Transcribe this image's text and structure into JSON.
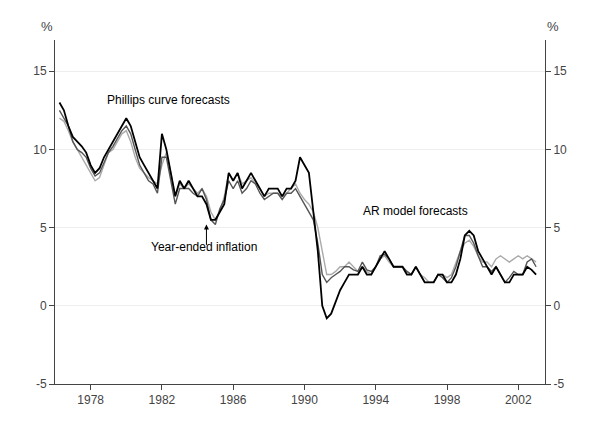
{
  "chart_data": {
    "type": "line",
    "ylabel": "%",
    "y2label": "%",
    "xlim": [
      1976.0,
      2003.5
    ],
    "ylim": [
      -5,
      17
    ],
    "yticks": [
      -5,
      0,
      5,
      10,
      15
    ],
    "y2lim": [
      -5,
      17
    ],
    "y2ticks": [
      -5,
      0,
      5,
      10,
      15
    ],
    "xticks": [
      1978,
      1982,
      1986,
      1990,
      1994,
      1998,
      2002
    ],
    "grid": true,
    "annotations": [
      {
        "text": "Phillips curve forecasts"
      },
      {
        "text": "AR model forecasts"
      },
      {
        "text": "Year-ended inflation"
      }
    ],
    "x": [
      1976.25,
      1976.5,
      1976.75,
      1977.0,
      1977.25,
      1977.5,
      1977.75,
      1978.0,
      1978.25,
      1978.5,
      1978.75,
      1979.0,
      1979.25,
      1979.5,
      1979.75,
      1980.0,
      1980.25,
      1980.5,
      1980.75,
      1981.0,
      1981.25,
      1981.5,
      1981.75,
      1982.0,
      1982.25,
      1982.5,
      1982.75,
      1983.0,
      1983.25,
      1983.5,
      1983.75,
      1984.0,
      1984.25,
      1984.5,
      1984.75,
      1985.0,
      1985.25,
      1985.5,
      1985.75,
      1986.0,
      1986.25,
      1986.5,
      1986.75,
      1987.0,
      1987.25,
      1987.5,
      1987.75,
      1988.0,
      1988.25,
      1988.5,
      1988.75,
      1989.0,
      1989.25,
      1989.5,
      1989.75,
      1990.0,
      1990.25,
      1990.5,
      1990.75,
      1991.0,
      1991.25,
      1991.5,
      1991.75,
      1992.0,
      1992.25,
      1992.5,
      1992.75,
      1993.0,
      1993.25,
      1993.5,
      1993.75,
      1994.0,
      1994.25,
      1994.5,
      1994.75,
      1995.0,
      1995.25,
      1995.5,
      1995.75,
      1996.0,
      1996.25,
      1996.5,
      1996.75,
      1997.0,
      1997.25,
      1997.5,
      1997.75,
      1998.0,
      1998.25,
      1998.5,
      1998.75,
      1999.0,
      1999.25,
      1999.5,
      1999.75,
      2000.0,
      2000.25,
      2000.5,
      2000.75,
      2001.0,
      2001.25,
      2001.5,
      2001.75,
      2002.0,
      2002.25,
      2002.5,
      2002.75,
      2003.0
    ],
    "series": [
      {
        "color": "#aaaaaa",
        "values": [
          12.0,
          11.8,
          11.2,
          10.5,
          10.0,
          9.5,
          9.0,
          8.5,
          8.0,
          8.2,
          9.0,
          9.8,
          10.0,
          10.5,
          11.0,
          11.2,
          10.5,
          9.5,
          8.8,
          8.5,
          8.2,
          8.0,
          7.8,
          9.0,
          9.8,
          8.5,
          7.0,
          7.8,
          7.5,
          7.8,
          7.5,
          7.2,
          7.5,
          7.0,
          6.0,
          5.5,
          6.0,
          7.0,
          8.5,
          8.0,
          8.5,
          7.8,
          8.0,
          8.2,
          7.8,
          7.5,
          7.0,
          7.2,
          7.2,
          7.2,
          7.0,
          7.2,
          7.5,
          7.8,
          7.2,
          6.8,
          6.5,
          6.0,
          5.0,
          3.5,
          2.0,
          2.0,
          2.2,
          2.5,
          2.5,
          2.8,
          2.5,
          2.2,
          2.5,
          2.2,
          2.0,
          2.5,
          3.0,
          3.2,
          2.8,
          2.5,
          2.5,
          2.5,
          2.2,
          2.0,
          2.5,
          2.0,
          1.8,
          1.5,
          1.5,
          2.0,
          2.0,
          1.8,
          2.0,
          2.8,
          3.5,
          4.0,
          4.2,
          3.8,
          3.2,
          2.8,
          2.8,
          2.5,
          3.0,
          3.2,
          3.0,
          2.8,
          3.0,
          3.2,
          3.0,
          3.2,
          3.0,
          2.8
        ]
      },
      {
        "color": "#555555",
        "values": [
          12.5,
          12.0,
          11.5,
          10.5,
          10.0,
          9.8,
          9.5,
          8.8,
          8.3,
          8.5,
          9.2,
          9.8,
          10.2,
          10.7,
          11.2,
          11.5,
          11.0,
          10.0,
          9.0,
          8.5,
          8.0,
          7.8,
          7.2,
          9.5,
          9.5,
          8.0,
          6.5,
          7.5,
          7.5,
          7.5,
          7.2,
          7.0,
          7.5,
          6.8,
          5.5,
          5.2,
          6.2,
          6.8,
          8.0,
          7.5,
          8.0,
          7.2,
          7.5,
          8.0,
          7.8,
          7.2,
          6.8,
          7.0,
          7.2,
          7.2,
          6.8,
          7.2,
          7.2,
          7.5,
          7.0,
          6.5,
          6.0,
          5.5,
          4.0,
          2.0,
          1.5,
          1.8,
          2.0,
          2.2,
          2.5,
          2.5,
          2.3,
          2.2,
          2.8,
          2.3,
          2.2,
          2.5,
          3.2,
          3.3,
          3.0,
          2.5,
          2.5,
          2.5,
          2.2,
          2.0,
          2.5,
          2.0,
          1.5,
          1.5,
          1.5,
          2.0,
          1.8,
          1.5,
          1.8,
          2.5,
          3.5,
          4.5,
          4.5,
          4.0,
          3.2,
          2.5,
          2.5,
          2.2,
          2.5,
          2.0,
          1.5,
          1.8,
          2.2,
          2.0,
          2.0,
          2.8,
          3.0,
          2.5
        ]
      },
      {
        "color": "#000000",
        "values": [
          13.0,
          12.5,
          11.5,
          10.8,
          10.5,
          10.2,
          9.8,
          9.0,
          8.5,
          8.8,
          9.5,
          10.0,
          10.5,
          11.0,
          11.5,
          12.0,
          11.5,
          10.5,
          9.5,
          9.0,
          8.5,
          8.0,
          7.5,
          11.0,
          10.0,
          8.5,
          7.0,
          8.0,
          7.5,
          8.0,
          7.5,
          7.0,
          7.0,
          6.5,
          5.5,
          5.5,
          6.0,
          6.5,
          8.5,
          8.0,
          8.5,
          7.5,
          8.0,
          8.5,
          8.0,
          7.5,
          7.0,
          7.5,
          7.5,
          7.5,
          7.0,
          7.5,
          7.5,
          8.0,
          9.5,
          9.0,
          8.5,
          6.0,
          3.5,
          0.0,
          -0.8,
          -0.5,
          0.2,
          1.0,
          1.5,
          2.0,
          2.0,
          2.0,
          2.5,
          2.0,
          2.0,
          2.5,
          3.0,
          3.5,
          3.0,
          2.5,
          2.5,
          2.5,
          2.0,
          2.0,
          2.5,
          2.0,
          1.5,
          1.5,
          1.5,
          2.0,
          2.0,
          1.5,
          1.5,
          2.0,
          3.0,
          4.5,
          4.8,
          4.5,
          3.5,
          3.0,
          2.5,
          2.0,
          2.5,
          2.0,
          1.5,
          1.5,
          2.0,
          2.0,
          2.0,
          2.5,
          2.3,
          2.0
        ]
      }
    ]
  }
}
